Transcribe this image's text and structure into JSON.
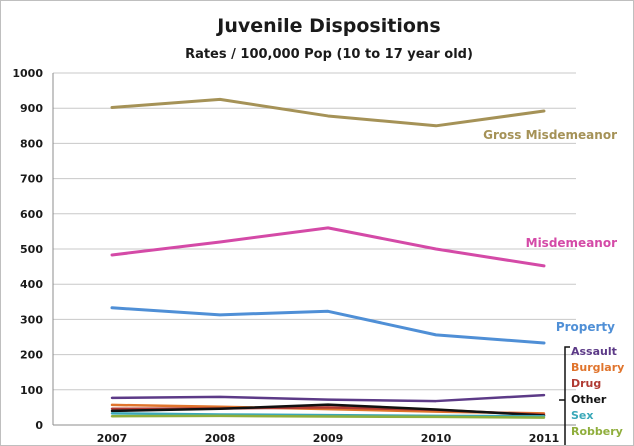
{
  "chart_data": {
    "type": "line",
    "title": "Juvenile Dispositions",
    "subtitle": "Rates / 100,000 Pop (10 to 17 year old)",
    "xlabel": "",
    "ylabel": "",
    "x": [
      "2007",
      "2008",
      "2009",
      "2010",
      "2011"
    ],
    "ylim": [
      0,
      1000
    ],
    "yticks": [
      0,
      100,
      200,
      300,
      400,
      500,
      600,
      700,
      800,
      900,
      1000
    ],
    "grid": true,
    "legend": "right",
    "series": [
      {
        "name": "Gross Misdemeanor",
        "color": "#a59257",
        "values": [
          902,
          925,
          878,
          850,
          892
        ]
      },
      {
        "name": "Misdemeanor",
        "color": "#d44aa7",
        "values": [
          483,
          520,
          560,
          500,
          452
        ]
      },
      {
        "name": "Property",
        "color": "#4f8fd6",
        "values": [
          333,
          313,
          323,
          256,
          233
        ]
      },
      {
        "name": "Assault",
        "color": "#5c3a87",
        "values": [
          77,
          80,
          72,
          68,
          85
        ]
      },
      {
        "name": "Burglary",
        "color": "#e0742c",
        "values": [
          57,
          52,
          45,
          38,
          33
        ]
      },
      {
        "name": "Drug",
        "color": "#b03a33",
        "values": [
          46,
          47,
          50,
          43,
          29
        ]
      },
      {
        "name": "Other",
        "color": "#111111",
        "values": [
          40,
          46,
          58,
          44,
          27
        ]
      },
      {
        "name": "Sex",
        "color": "#3aa8b8",
        "values": [
          33,
          30,
          28,
          26,
          25
        ]
      },
      {
        "name": "Robbery",
        "color": "#8fae3c",
        "values": [
          25,
          26,
          24,
          23,
          21
        ]
      }
    ]
  }
}
